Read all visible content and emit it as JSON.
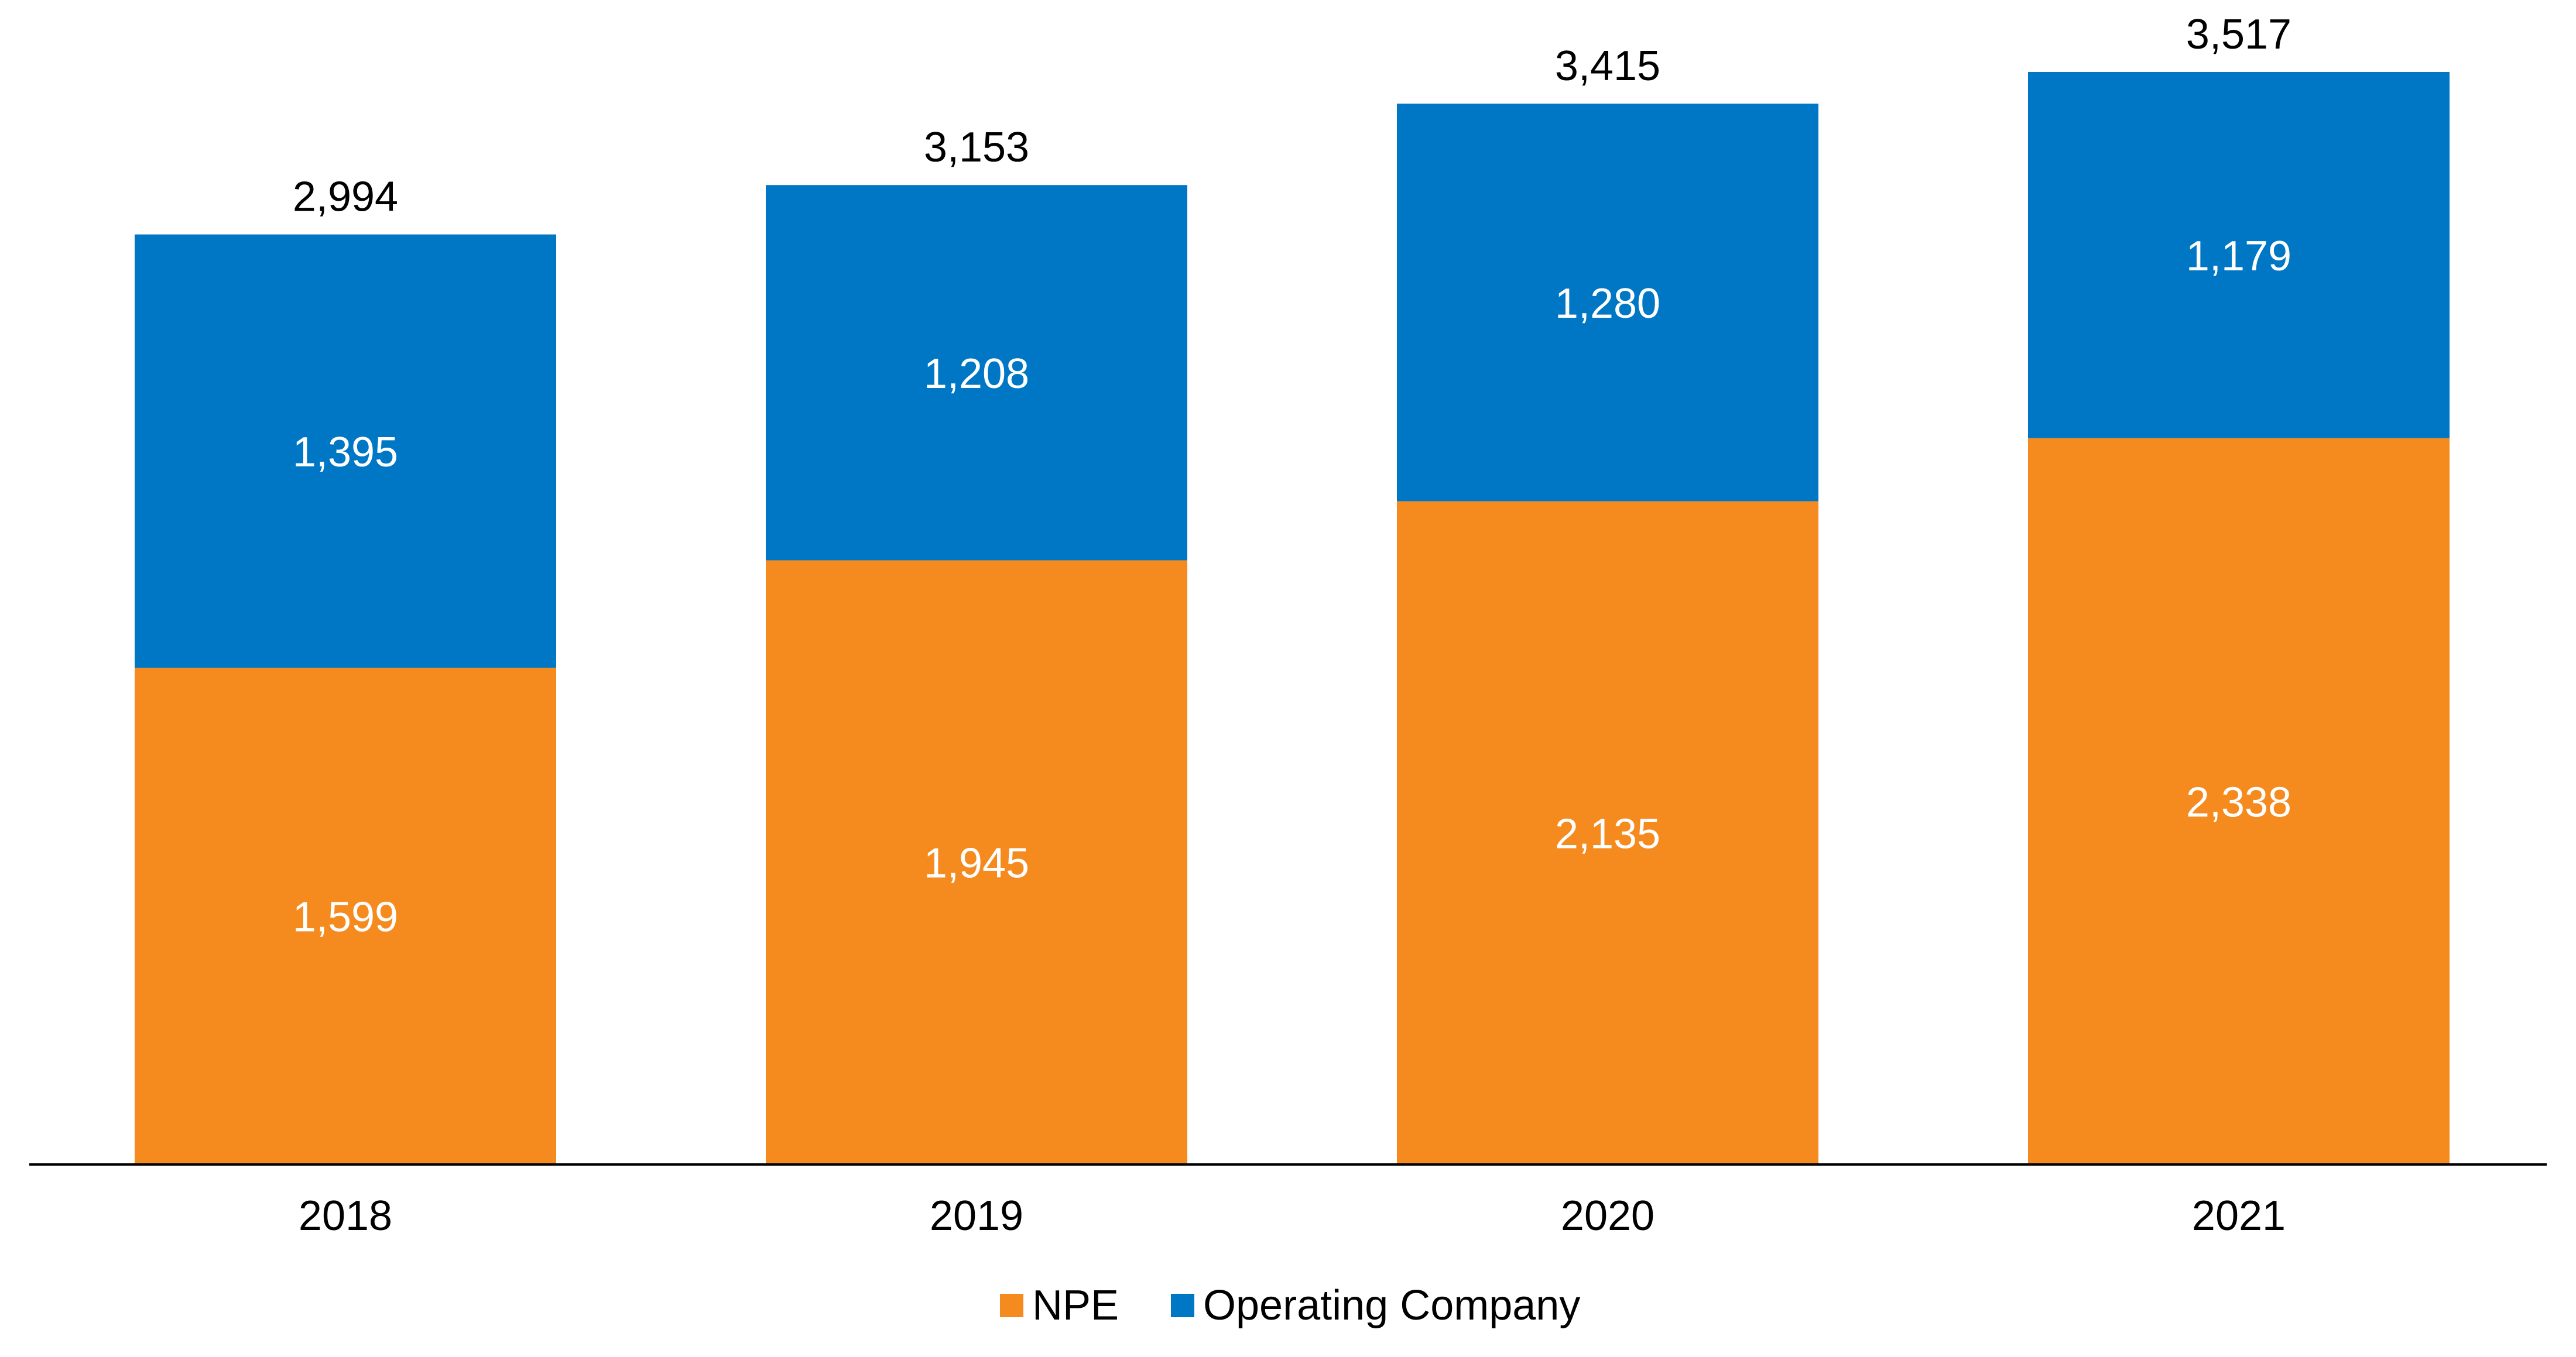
{
  "chart_data": {
    "type": "bar",
    "stacked": true,
    "categories": [
      "2018",
      "2019",
      "2020",
      "2021"
    ],
    "series": [
      {
        "name": "NPE",
        "color": "#F58B1F",
        "values": [
          1599,
          1945,
          2135,
          2338
        ],
        "labels": [
          "1,599",
          "1,945",
          "2,135",
          "2,338"
        ]
      },
      {
        "name": "Operating Company",
        "color": "#0077C5",
        "values": [
          1395,
          1208,
          1280,
          1179
        ],
        "labels": [
          "1,395",
          "1,208",
          "1,280",
          "1,179"
        ]
      }
    ],
    "totals": [
      2994,
      3153,
      3415,
      3517
    ],
    "total_labels": [
      "2,994",
      "3,153",
      "3,415",
      "3,517"
    ],
    "ylim": [
      0,
      3517
    ],
    "legend_position": "bottom-center",
    "grid": false
  }
}
